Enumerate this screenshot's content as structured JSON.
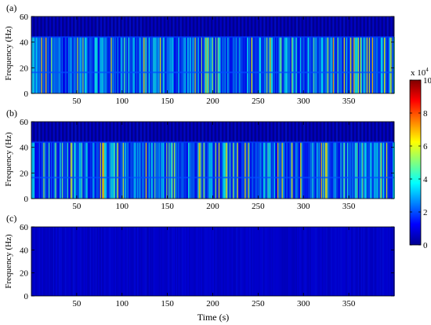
{
  "chart_data": [
    {
      "type": "heatmap",
      "panel_label": "(a)",
      "xlabel": "",
      "ylabel": "Frequency (Hz)",
      "xlim": [
        0,
        400
      ],
      "ylim": [
        0,
        60
      ],
      "xticks": [
        50,
        100,
        150,
        200,
        250,
        300,
        350
      ],
      "yticks": [
        0,
        20,
        40,
        60
      ],
      "pattern": "dense broadband vertical streaks between 0 and about 44 Hz; weak band near 16 Hz; quiet region 44-60 Hz",
      "active_band_hz": [
        0,
        44
      ],
      "level": "high"
    },
    {
      "type": "heatmap",
      "panel_label": "(b)",
      "xlabel": "",
      "ylabel": "Frequency (Hz)",
      "xlim": [
        0,
        400
      ],
      "ylim": [
        0,
        60
      ],
      "xticks": [
        50,
        100,
        150,
        200,
        250,
        300,
        350
      ],
      "yticks": [
        0,
        20,
        40,
        60
      ],
      "pattern": "similar to (a): dense vertical streaks 0-44 Hz, quiet 44-60 Hz",
      "active_band_hz": [
        0,
        44
      ],
      "level": "high"
    },
    {
      "type": "heatmap",
      "panel_label": "(c)",
      "xlabel": "Time (s)",
      "ylabel": "Frequency (Hz)",
      "xlim": [
        0,
        400
      ],
      "ylim": [
        0,
        60
      ],
      "xticks": [
        50,
        100,
        150,
        200,
        250,
        300,
        350
      ],
      "yticks": [
        0,
        20,
        40,
        60
      ],
      "pattern": "uniformly low energy, faint streaks only",
      "active_band_hz": [
        0,
        60
      ],
      "level": "low"
    }
  ],
  "colorbar": {
    "multiplier_base": "x 10",
    "multiplier_exp": "4",
    "ticks": [
      0,
      2,
      4,
      6,
      8,
      10
    ],
    "range": [
      0,
      10
    ],
    "colormap": "jet",
    "colors": [
      "#00008f",
      "#0000ff",
      "#0080ff",
      "#00ffff",
      "#80ff80",
      "#ffff00",
      "#ff8000",
      "#ff0000",
      "#800000"
    ]
  }
}
